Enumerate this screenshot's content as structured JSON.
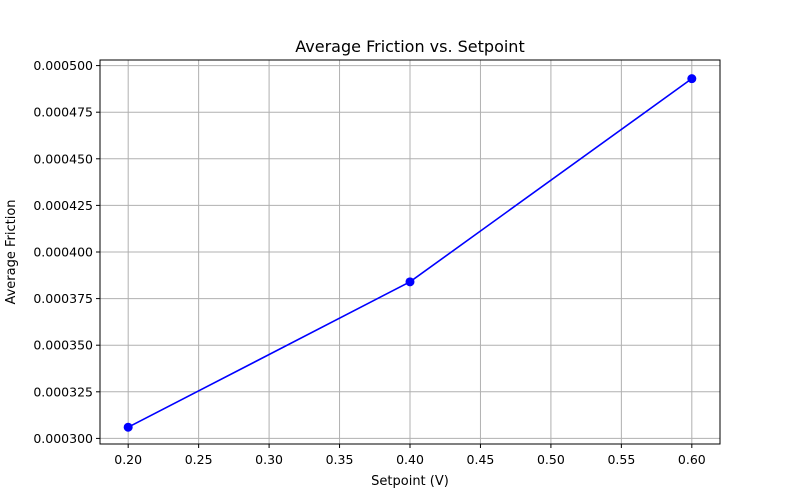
{
  "chart_data": {
    "type": "line",
    "title": "Average Friction vs. Setpoint",
    "xlabel": "Setpoint (V)",
    "ylabel": "Average Friction",
    "xlim": [
      0.18,
      0.62
    ],
    "ylim": [
      0.000297,
      0.000503
    ],
    "xticks": [
      0.2,
      0.25,
      0.3,
      0.35,
      0.4,
      0.45,
      0.5,
      0.55,
      0.6
    ],
    "xtick_labels": [
      "0.20",
      "0.25",
      "0.30",
      "0.35",
      "0.40",
      "0.45",
      "0.50",
      "0.55",
      "0.60"
    ],
    "yticks": [
      0.0003,
      0.000325,
      0.00035,
      0.000375,
      0.0004,
      0.000425,
      0.00045,
      0.000475,
      0.0005
    ],
    "ytick_labels": [
      "0.000300",
      "0.000325",
      "0.000350",
      "0.000375",
      "0.000400",
      "0.000425",
      "0.000450",
      "0.000475",
      "0.000500"
    ],
    "grid": true,
    "series": [
      {
        "x": [
          0.2,
          0.4,
          0.6
        ],
        "y": [
          0.000306,
          0.000384,
          0.000493
        ],
        "color": "#0000ff",
        "marker": "circle"
      }
    ]
  }
}
